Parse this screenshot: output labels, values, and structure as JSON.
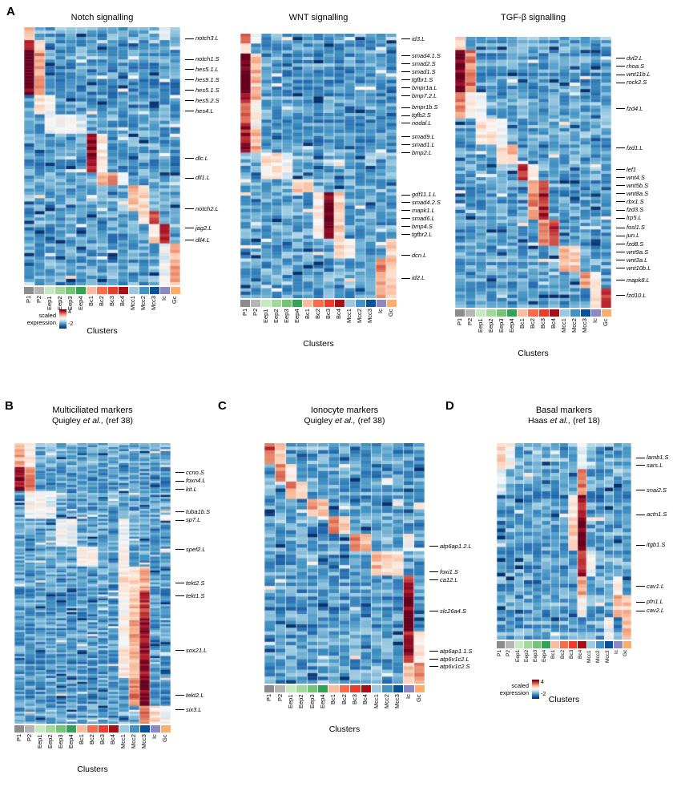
{
  "figure": {
    "panels": [
      {
        "id": "A",
        "label": "A"
      },
      {
        "id": "B",
        "label": "B"
      },
      {
        "id": "C",
        "label": "C"
      },
      {
        "id": "D",
        "label": "D"
      }
    ]
  },
  "xlabel": "Clusters",
  "legend": {
    "label": "scaled expression",
    "max": "4",
    "min": "-2"
  },
  "clusters": [
    "P1",
    "P2",
    "Eep1",
    "Eep2",
    "Eep3",
    "Eep4",
    "Bc1",
    "Bc2",
    "Bc3",
    "Bc4",
    "Mcc1",
    "Mcc2",
    "Mcc3",
    "Ic",
    "Gc"
  ],
  "cluster_colors": [
    "#8c8c8c",
    "#b5b5b5",
    "#c7e9c0",
    "#a1d99b",
    "#74c476",
    "#31a354",
    "#fcbba1",
    "#fb6a4a",
    "#ef3b2c",
    "#a50f15",
    "#9ecae1",
    "#4292c6",
    "#08519c",
    "#8d89c0",
    "#fdae6b"
  ],
  "colormap": {
    "domain": [
      -2,
      4
    ],
    "stops": [
      [
        -2,
        "#08306b"
      ],
      [
        -1.2,
        "#2166ac"
      ],
      [
        -0.6,
        "#4393c3"
      ],
      [
        0,
        "#92c5de"
      ],
      [
        0.6,
        "#d1e5f0"
      ],
      [
        1.1,
        "#f7f7f7"
      ],
      [
        1.7,
        "#fddbc7"
      ],
      [
        2.3,
        "#f4a582"
      ],
      [
        2.9,
        "#d6604d"
      ],
      [
        3.5,
        "#b2182b"
      ],
      [
        4,
        "#67001f"
      ]
    ]
  },
  "chart_data": [
    {
      "id": "notch",
      "type": "heatmap",
      "panel": "A",
      "title": "Notch signalling",
      "xlabel": "Clusters",
      "value_domain": [
        -2,
        4
      ],
      "gene_labels": [
        {
          "gene": "notch3.L",
          "row_frac": 0.045
        },
        {
          "gene": "notch1.S",
          "row_frac": 0.125
        },
        {
          "gene": "hes5.1.L",
          "row_frac": 0.165
        },
        {
          "gene": "hes9.1.S",
          "row_frac": 0.205
        },
        {
          "gene": "hes5.1.S",
          "row_frac": 0.245
        },
        {
          "gene": "hes5.2.S",
          "row_frac": 0.285
        },
        {
          "gene": "hes4.L",
          "row_frac": 0.325
        },
        {
          "gene": "dlc.L",
          "row_frac": 0.51
        },
        {
          "gene": "dll1.L",
          "row_frac": 0.585
        },
        {
          "gene": "notch2.L",
          "row_frac": 0.705
        },
        {
          "gene": "jag2.L",
          "row_frac": 0.78
        },
        {
          "gene": "dll4.L",
          "row_frac": 0.825
        }
      ],
      "row_groups": [
        {
          "n": 4,
          "base": -0.3,
          "hi": {
            "0": 1.8,
            "13": 0.8
          }
        },
        {
          "n": 3,
          "base": -0.5,
          "hi": {
            "0": 3.0,
            "1": 1.4
          }
        },
        {
          "n": 14,
          "base": -0.6,
          "hi": {
            "0": 4,
            "1": 2.4
          }
        },
        {
          "n": 6,
          "base": -0.4,
          "hi": {
            "1": 1.6,
            "2": 1.0
          }
        },
        {
          "n": 6,
          "base": -0.3,
          "hi": {
            "2": 1.2,
            "3": 1.2,
            "4": 1.0,
            "5": 0.9
          }
        },
        {
          "n": 12,
          "base": -0.5,
          "hi": {
            "6": 3.6,
            "7": 1.4
          }
        },
        {
          "n": 4,
          "base": -0.4,
          "hi": {
            "7": 2.0,
            "8": 2.4,
            "9": 1.4
          }
        },
        {
          "n": 8,
          "base": -0.35,
          "hi": {
            "10": 2.0,
            "11": 1.7
          }
        },
        {
          "n": 4,
          "base": -0.5,
          "hi": {
            "11": 1.6,
            "12": 3.0
          }
        },
        {
          "n": 6,
          "base": -0.45,
          "hi": {
            "12": 1.6,
            "13": 3.4
          }
        },
        {
          "n": 13,
          "base": -0.5,
          "hi": {
            "13": 0.9,
            "14": 2.2
          }
        }
      ]
    },
    {
      "id": "wnt",
      "type": "heatmap",
      "panel": "A",
      "title": "WNT signalling",
      "xlabel": "Clusters",
      "value_domain": [
        -2,
        4
      ],
      "gene_labels": [
        {
          "gene": "id3.L",
          "row_frac": 0.02
        },
        {
          "gene": "smad4.1.S",
          "row_frac": 0.085
        },
        {
          "gene": "smad2.S",
          "row_frac": 0.115
        },
        {
          "gene": "smad1.S",
          "row_frac": 0.145
        },
        {
          "gene": "tgfbr1.S",
          "row_frac": 0.175
        },
        {
          "gene": "bmpr1a.L",
          "row_frac": 0.205
        },
        {
          "gene": "bmp7.2.L",
          "row_frac": 0.235
        },
        {
          "gene": "bmpr1b.S",
          "row_frac": 0.28
        },
        {
          "gene": "tgfb2.S",
          "row_frac": 0.31
        },
        {
          "gene": "nodal.L",
          "row_frac": 0.34
        },
        {
          "gene": "smad9.L",
          "row_frac": 0.39
        },
        {
          "gene": "smad1.L",
          "row_frac": 0.42
        },
        {
          "gene": "bmp2.L",
          "row_frac": 0.45
        },
        {
          "gene": "gdf11.1.L",
          "row_frac": 0.61
        },
        {
          "gene": "smad4.2.S",
          "row_frac": 0.64
        },
        {
          "gene": "mapk1.L",
          "row_frac": 0.67
        },
        {
          "gene": "smad6.L",
          "row_frac": 0.7
        },
        {
          "gene": "bmp4.S",
          "row_frac": 0.73
        },
        {
          "gene": "tgfbr2.L",
          "row_frac": 0.76
        },
        {
          "gene": "dcn.L",
          "row_frac": 0.84
        },
        {
          "gene": "id2.L",
          "row_frac": 0.925
        }
      ],
      "row_groups": [
        {
          "n": 3,
          "base": -0.4,
          "hi": {
            "0": 2.5,
            "1": 1.0
          }
        },
        {
          "n": 3,
          "base": -0.5,
          "hi": {
            "0": 1.5
          }
        },
        {
          "n": 14,
          "base": -0.6,
          "hi": {
            "0": 4,
            "1": 2.0
          }
        },
        {
          "n": 8,
          "base": -0.5,
          "hi": {
            "0": 3.0,
            "1": 1.2
          }
        },
        {
          "n": 8,
          "base": -0.55,
          "hi": {
            "0": 3.5,
            "1": 2.2
          }
        },
        {
          "n": 8,
          "base": -0.3,
          "hi": {
            "2": 1.5,
            "3": 1.5,
            "4": 1.0
          }
        },
        {
          "n": 4,
          "base": -0.35,
          "hi": {
            "5": 1.8,
            "6": 1.5
          }
        },
        {
          "n": 14,
          "base": -0.5,
          "hi": {
            "7": 1.5,
            "8": 3.8,
            "9": 1.8
          }
        },
        {
          "n": 6,
          "base": -0.4,
          "hi": {
            "9": 1.5,
            "10": 1.2,
            "14": 1.8
          }
        },
        {
          "n": 12,
          "base": -0.5,
          "hi": {
            "13": 2.5,
            "14": 2.0
          }
        }
      ]
    },
    {
      "id": "tgf",
      "type": "heatmap",
      "panel": "A",
      "title": "TGF-β signalling",
      "xlabel": "Clusters",
      "value_domain": [
        -2,
        4
      ],
      "gene_labels": [
        {
          "gene": "dvl2.L",
          "row_frac": 0.08
        },
        {
          "gene": "rhoa.S",
          "row_frac": 0.11
        },
        {
          "gene": "wnt11b.L",
          "row_frac": 0.14
        },
        {
          "gene": "rock2.S",
          "row_frac": 0.17
        },
        {
          "gene": "fzd4.L",
          "row_frac": 0.265
        },
        {
          "gene": "fzd1.L",
          "row_frac": 0.41
        },
        {
          "gene": "lef1",
          "row_frac": 0.49
        },
        {
          "gene": "wnt4.S",
          "row_frac": 0.52
        },
        {
          "gene": "wnt5b.S",
          "row_frac": 0.55
        },
        {
          "gene": "wnt8a.S",
          "row_frac": 0.58
        },
        {
          "gene": "rbx1.S",
          "row_frac": 0.61
        },
        {
          "gene": "fzd3.S",
          "row_frac": 0.64
        },
        {
          "gene": "lrp5.L",
          "row_frac": 0.67
        },
        {
          "gene": "fosl1.S",
          "row_frac": 0.705
        },
        {
          "gene": "jun.L",
          "row_frac": 0.735
        },
        {
          "gene": "fzd8.S",
          "row_frac": 0.765
        },
        {
          "gene": "wnt9a.S",
          "row_frac": 0.795
        },
        {
          "gene": "wnt3a.L",
          "row_frac": 0.825
        },
        {
          "gene": "wnt10b.L",
          "row_frac": 0.855
        },
        {
          "gene": "mapk8.L",
          "row_frac": 0.9
        },
        {
          "gene": "fzd10.L",
          "row_frac": 0.955
        }
      ],
      "row_groups": [
        {
          "n": 4,
          "base": -0.4,
          "hi": {
            "0": 1.5
          }
        },
        {
          "n": 13,
          "base": -0.6,
          "hi": {
            "0": 4,
            "1": 2.6
          }
        },
        {
          "n": 8,
          "base": -0.45,
          "hi": {
            "0": 2.5,
            "1": 1.4,
            "2": 0.8
          }
        },
        {
          "n": 8,
          "base": -0.3,
          "hi": {
            "2": 1.4,
            "3": 1.5,
            "4": 1.1
          }
        },
        {
          "n": 6,
          "base": -0.4,
          "hi": {
            "4": 1.6,
            "5": 2.0
          }
        },
        {
          "n": 5,
          "base": -0.45,
          "hi": {
            "6": 3.4,
            "7": 1.6
          }
        },
        {
          "n": 12,
          "base": -0.5,
          "hi": {
            "7": 2.4,
            "8": 3.4
          }
        },
        {
          "n": 8,
          "base": -0.45,
          "hi": {
            "8": 2.4,
            "9": 3.2
          }
        },
        {
          "n": 8,
          "base": -0.35,
          "hi": {
            "10": 2.2,
            "11": 1.8
          }
        },
        {
          "n": 5,
          "base": -0.5,
          "hi": {
            "12": 2.4,
            "13": 1.6
          }
        },
        {
          "n": 6,
          "base": -0.45,
          "hi": {
            "13": 1.8,
            "14": 3.0
          }
        }
      ]
    },
    {
      "id": "mcc",
      "type": "heatmap",
      "panel": "B",
      "title": "Multiciliated markers",
      "subtitle": {
        "pre": "Quigley ",
        "italic": "et al.,",
        "post": " (ref 38)"
      },
      "xlabel": "Clusters",
      "value_domain": [
        -2,
        4
      ],
      "gene_labels": [
        {
          "gene": "ccno.S",
          "row_frac": 0.105
        },
        {
          "gene": "foxn4.L",
          "row_frac": 0.135
        },
        {
          "gene": "kit.L",
          "row_frac": 0.165
        },
        {
          "gene": "tuba1b.S",
          "row_frac": 0.245
        },
        {
          "gene": "sp7.L",
          "row_frac": 0.275
        },
        {
          "gene": "spef2.L",
          "row_frac": 0.38
        },
        {
          "gene": "tekt2.S",
          "row_frac": 0.5
        },
        {
          "gene": "tekt1.S",
          "row_frac": 0.545
        },
        {
          "gene": "sox21.L",
          "row_frac": 0.74
        },
        {
          "gene": "tekt2.L",
          "row_frac": 0.9
        },
        {
          "gene": "six3.L",
          "row_frac": 0.95
        }
      ],
      "row_groups": [
        {
          "n": 12,
          "base": -0.3,
          "hi": {
            "0": 2.2,
            "1": 1.4
          }
        },
        {
          "n": 12,
          "base": -0.5,
          "hi": {
            "0": 3.8,
            "1": 2.6
          }
        },
        {
          "n": 14,
          "base": -0.35,
          "hi": {
            "1": 1.2,
            "2": 1.2,
            "3": 0.8
          }
        },
        {
          "n": 14,
          "base": -0.4,
          "hi": {
            "4": 1.0,
            "5": 1.0,
            "10": 1.0
          }
        },
        {
          "n": 10,
          "base": -0.35,
          "hi": {
            "6": 1.4,
            "7": 1.2,
            "10": 1.4
          }
        },
        {
          "n": 12,
          "base": -0.45,
          "hi": {
            "10": 1.6,
            "11": 1.6,
            "12": 2.2
          }
        },
        {
          "n": 14,
          "base": -0.5,
          "hi": {
            "10": 1.2,
            "11": 2.0,
            "12": 3.2
          }
        },
        {
          "n": 30,
          "base": -0.55,
          "hi": {
            "10": 1.4,
            "11": 2.2,
            "12": 3.8
          }
        },
        {
          "n": 14,
          "base": -0.55,
          "hi": {
            "11": 2.6,
            "12": 4.0
          }
        },
        {
          "n": 9,
          "base": -0.4,
          "hi": {
            "12": 2.6,
            "13": 1.6,
            "14": 1.2
          }
        }
      ]
    },
    {
      "id": "ion",
      "type": "heatmap",
      "panel": "C",
      "title": "Ionocyte markers",
      "subtitle": {
        "pre": "Quigley ",
        "italic": "et al.,",
        "post": " (ref 38)"
      },
      "xlabel": "Clusters",
      "value_domain": [
        -2,
        4
      ],
      "gene_labels": [
        {
          "gene": "atp6ap1.2.L",
          "row_frac": 0.43
        },
        {
          "gene": "foxi1.S",
          "row_frac": 0.535
        },
        {
          "gene": "ca12.L",
          "row_frac": 0.57
        },
        {
          "gene": "slc26a4.S",
          "row_frac": 0.7
        },
        {
          "gene": "atp6ap1.1.S",
          "row_frac": 0.865
        },
        {
          "gene": "atp6v1c2.L",
          "row_frac": 0.9
        },
        {
          "gene": "atp6v1c2.S",
          "row_frac": 0.93
        }
      ],
      "row_groups": [
        {
          "n": 6,
          "base": -0.4,
          "hi": {
            "0": 3.0,
            "1": 2.0
          }
        },
        {
          "n": 5,
          "base": -0.45,
          "hi": {
            "1": 2.6,
            "2": 1.4
          }
        },
        {
          "n": 5,
          "base": -0.4,
          "hi": {
            "2": 2.4,
            "3": 2.0
          }
        },
        {
          "n": 5,
          "base": -0.45,
          "hi": {
            "4": 2.2,
            "5": 2.0
          }
        },
        {
          "n": 5,
          "base": -0.4,
          "hi": {
            "6": 2.6,
            "7": 2.0
          }
        },
        {
          "n": 5,
          "base": -0.4,
          "hi": {
            "8": 2.4,
            "9": 2.2,
            "13": 1.2
          }
        },
        {
          "n": 7,
          "base": -0.45,
          "hi": {
            "10": 2.0,
            "11": 1.8,
            "12": 1.6
          }
        },
        {
          "n": 6,
          "base": -0.5,
          "hi": {
            "13": 3.4
          }
        },
        {
          "n": 10,
          "base": -0.6,
          "hi": {
            "13": 4.0
          }
        },
        {
          "n": 9,
          "base": -0.5,
          "hi": {
            "13": 3.6,
            "14": 1.4
          }
        },
        {
          "n": 6,
          "base": -0.45,
          "hi": {
            "13": 2.0,
            "14": 2.6
          }
        }
      ]
    },
    {
      "id": "basal",
      "type": "heatmap",
      "panel": "D",
      "title": "Basal markers",
      "subtitle": {
        "pre": "Haas ",
        "italic": "et al.,",
        "post": " (ref 18)"
      },
      "xlabel": "Clusters",
      "value_domain": [
        -2,
        4
      ],
      "gene_labels": [
        {
          "gene": "lamb1.S",
          "row_frac": 0.075
        },
        {
          "gene": "sars.L",
          "row_frac": 0.115
        },
        {
          "gene": "snai2.S",
          "row_frac": 0.24
        },
        {
          "gene": "actn1.S",
          "row_frac": 0.365
        },
        {
          "gene": "itgb1.S",
          "row_frac": 0.52
        },
        {
          "gene": "cav1.L",
          "row_frac": 0.73
        },
        {
          "gene": "pfn1.L",
          "row_frac": 0.81
        },
        {
          "gene": "cav2.L",
          "row_frac": 0.855
        }
      ],
      "row_groups": [
        {
          "n": 7,
          "base": -0.35,
          "hi": {
            "0": 1.8,
            "1": 1.2,
            "9": 1.0
          }
        },
        {
          "n": 7,
          "base": -0.45,
          "hi": {
            "0": 0.8,
            "9": 2.6
          }
        },
        {
          "n": 7,
          "base": -0.5,
          "hi": {
            "8": 1.6,
            "9": 3.6
          }
        },
        {
          "n": 8,
          "base": -0.5,
          "hi": {
            "8": 2.0,
            "9": 4.0
          }
        },
        {
          "n": 7,
          "base": -0.45,
          "hi": {
            "9": 3.4,
            "10": 1.0
          }
        },
        {
          "n": 5,
          "base": -0.4,
          "hi": {
            "9": 2.4,
            "13": 1.6
          }
        },
        {
          "n": 6,
          "base": -0.4,
          "hi": {
            "9": 1.2,
            "13": 2.0,
            "14": 1.8
          }
        },
        {
          "n": 6,
          "base": -0.5,
          "hi": {
            "12": 1.0,
            "14": 2.2
          }
        }
      ]
    }
  ]
}
